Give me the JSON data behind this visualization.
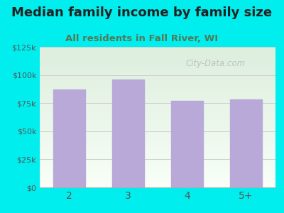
{
  "categories": [
    "2",
    "3",
    "4",
    "5+"
  ],
  "values": [
    87000,
    96000,
    77000,
    78000
  ],
  "bar_color": "#b9a9d9",
  "bar_edgecolor": "#b9a9d9",
  "title": "Median family income by family size",
  "subtitle": "All residents in Fall River, WI",
  "title_fontsize": 13,
  "subtitle_fontsize": 9.5,
  "title_color": "#222222",
  "subtitle_color": "#557755",
  "ylim": [
    0,
    125000
  ],
  "yticks": [
    0,
    25000,
    50000,
    75000,
    100000,
    125000
  ],
  "ytick_labels": [
    "$0",
    "$25k",
    "$50k",
    "$75k",
    "$100k",
    "$125k"
  ],
  "bg_outer": "#00eeee",
  "bg_inner_top": "#ddeedd",
  "bg_inner_bottom": "#f8fff8",
  "watermark": "City-Data.com",
  "tick_color": "#555555",
  "grid_color": "#cccccc",
  "bar_width": 0.55
}
